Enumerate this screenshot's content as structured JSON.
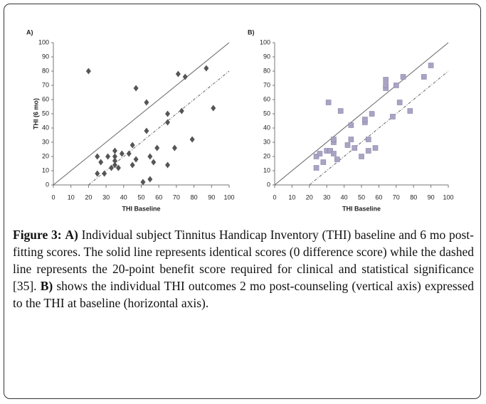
{
  "chart_data": [
    {
      "type": "scatter",
      "panel": "A)",
      "x_label": "THI Baseline",
      "y_label": "THI (6 mo)",
      "xlim": [
        0,
        100
      ],
      "ylim": [
        0,
        100
      ],
      "xticks": [
        0,
        10,
        20,
        30,
        40,
        50,
        60,
        70,
        80,
        90,
        100
      ],
      "yticks": [
        0,
        10,
        20,
        30,
        40,
        50,
        60,
        70,
        80,
        90,
        100
      ],
      "marker": "diamond",
      "color": "#555555",
      "x": [
        20,
        47,
        53,
        71,
        75,
        87,
        91,
        73,
        65,
        65,
        53,
        79,
        69,
        59,
        25,
        31,
        27,
        35,
        35,
        35,
        39,
        43,
        45,
        47,
        45,
        33,
        35,
        37,
        29,
        25,
        55,
        57,
        65,
        51,
        55
      ],
      "values": [
        80,
        68,
        58,
        78,
        76,
        82,
        54,
        52,
        50,
        44,
        38,
        32,
        26,
        26,
        20,
        20,
        16,
        24,
        20,
        17,
        22,
        22,
        28,
        18,
        14,
        12,
        14,
        12,
        8,
        8,
        20,
        16,
        14,
        2,
        4
      ],
      "reference_lines": [
        {
          "intercept": 0,
          "style": "solid"
        },
        {
          "intercept": -20,
          "style": "dashed"
        }
      ]
    },
    {
      "type": "scatter",
      "panel": "B)",
      "x_label": "THI Baseline",
      "xlim": [
        0,
        100
      ],
      "ylim": [
        0,
        100
      ],
      "xticks": [
        0,
        10,
        20,
        30,
        40,
        50,
        60,
        70,
        80,
        90,
        100
      ],
      "yticks": [
        0,
        10,
        20,
        30,
        40,
        50,
        60,
        70,
        80,
        90,
        100
      ],
      "marker": "square",
      "color": "#aaa3c4",
      "x": [
        24,
        24,
        26,
        28,
        30,
        32,
        34,
        34,
        34,
        36,
        38,
        31,
        42,
        44,
        44,
        46,
        50,
        52,
        52,
        54,
        54,
        56,
        58,
        64,
        64,
        64,
        68,
        70,
        72,
        74,
        78,
        86,
        90
      ],
      "values": [
        12,
        20,
        22,
        16,
        24,
        24,
        22,
        30,
        32,
        18,
        52,
        58,
        28,
        42,
        32,
        26,
        20,
        44,
        46,
        24,
        32,
        50,
        26,
        68,
        70,
        74,
        48,
        70,
        58,
        76,
        52,
        76,
        84
      ],
      "reference_lines": [
        {
          "intercept": 0,
          "style": "solid"
        },
        {
          "intercept": -20,
          "style": "dashed"
        }
      ]
    }
  ],
  "caption": {
    "label": "Figure 3:",
    "a_label": "A)",
    "a_text": " Individual subject Tinnitus Handicap Inventory (THI) baseline and 6 mo post-fitting scores. The solid line represents identical scores (0 difference score) while the dashed line represents the 20-point benefit score required for clinical and statistical significance [35]. ",
    "b_label": "B)",
    "b_text": " shows the individual THI outcomes 2 mo post-counseling (vertical axis) expressed to the THI at baseline (horizontal axis)."
  }
}
